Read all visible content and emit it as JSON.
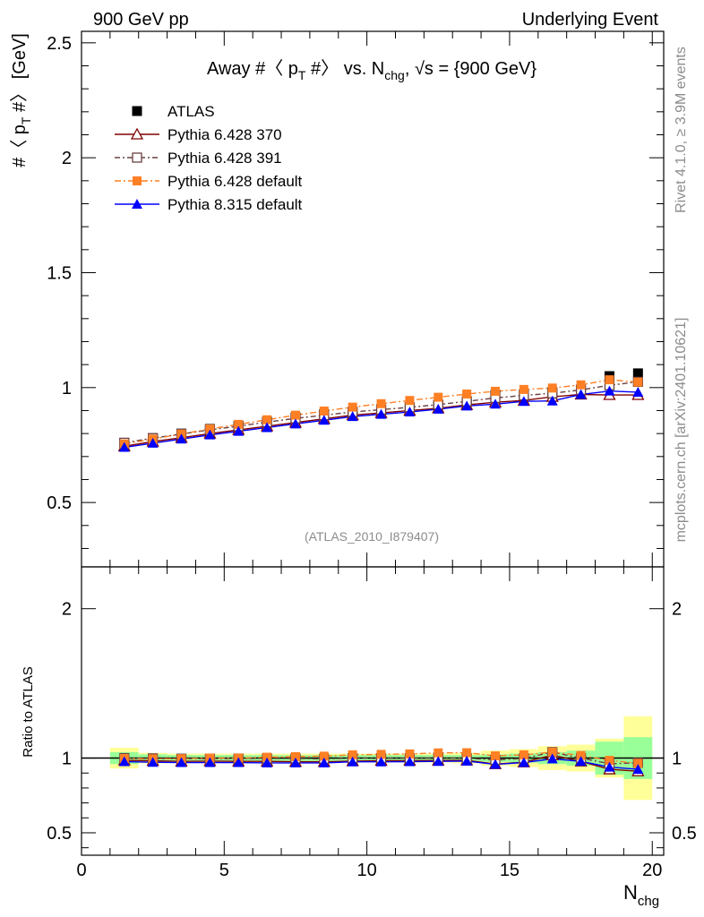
{
  "header": {
    "left": "900 GeV pp",
    "right": "Underlying Event"
  },
  "side": {
    "rivet": "Rivet 4.1.0, ≥ 3.9M events",
    "source": "mcplots.cern.ch [arXiv:2401.10621]"
  },
  "chart_data": {
    "type": "line",
    "title_parts": {
      "a": "Away #〈 p",
      "a_sub": "T",
      "b": " #〉 vs. N",
      "b_sub": "chg",
      "c": ", √s = {900 GeV}"
    },
    "ylabel_parts": {
      "a": "#〈 p",
      "a_sub": "T",
      "b": " #〉 [GeV]"
    },
    "xlabel": "N",
    "xlabel_sub": "chg",
    "ratio_ylabel": "Ratio to ATLAS",
    "watermark": "(ATLAS_2010_I879407)",
    "xlim": [
      0,
      20.4
    ],
    "ylim": [
      0.22,
      2.55
    ],
    "ratio_ylim": [
      0.35,
      2.28
    ],
    "x_ticks": [
      "0",
      "5",
      "10",
      "15",
      "20"
    ],
    "y_ticks": [
      "0.5",
      "1",
      "1.5",
      "2",
      "2.5"
    ],
    "ratio_y_ticks": [
      "0.5",
      "1",
      "2"
    ],
    "x": [
      1.5,
      2.5,
      3.5,
      4.5,
      5.5,
      6.5,
      7.5,
      8.5,
      9.5,
      10.5,
      11.5,
      12.5,
      13.5,
      14.5,
      15.5,
      16.5,
      17.5,
      18.5,
      19.5
    ],
    "series": [
      {
        "name": "ATLAS",
        "color": "#000000",
        "marker": "square-filled",
        "values": [
          0.758,
          0.78,
          0.8,
          0.82,
          0.834,
          0.852,
          0.87,
          0.885,
          0.895,
          0.905,
          0.915,
          0.925,
          0.94,
          0.968,
          0.97,
          0.98,
          0.992,
          1.05,
          1.062
        ]
      },
      {
        "name": "Pythia 6.428 370",
        "color": "#800000",
        "marker": "triangle-open",
        "values": [
          0.745,
          0.765,
          0.782,
          0.8,
          0.816,
          0.832,
          0.848,
          0.864,
          0.88,
          0.89,
          0.9,
          0.91,
          0.925,
          0.936,
          0.944,
          0.96,
          0.97,
          0.968,
          0.968
        ],
        "ratio": [
          0.985,
          0.982,
          0.978,
          0.98,
          0.978,
          0.978,
          0.976,
          0.975,
          0.98,
          0.983,
          0.983,
          0.984,
          0.985,
          0.96,
          0.972,
          1.02,
          0.978,
          0.925,
          0.912
        ]
      },
      {
        "name": "Pythia 6.428 391",
        "color": "#6b4040",
        "marker": "square-open",
        "values": [
          0.76,
          0.78,
          0.798,
          0.816,
          0.832,
          0.85,
          0.866,
          0.88,
          0.894,
          0.904,
          0.914,
          0.926,
          0.94,
          0.955,
          0.966,
          0.975,
          0.99,
          1.01,
          1.025
        ],
        "ratio": [
          1.0,
          0.998,
          0.996,
          0.996,
          0.997,
          0.998,
          0.998,
          0.995,
          1.0,
          1.0,
          1.0,
          1.003,
          1.0,
          0.988,
          0.998,
          1.04,
          1.0,
          0.962,
          0.968
        ]
      },
      {
        "name": "Pythia 6.428 default",
        "color": "#ff7f24",
        "marker": "square-filled",
        "values": [
          0.755,
          0.776,
          0.798,
          0.82,
          0.84,
          0.86,
          0.88,
          0.898,
          0.915,
          0.93,
          0.944,
          0.958,
          0.972,
          0.984,
          0.992,
          0.998,
          1.012,
          1.034,
          1.024
        ],
        "ratio": [
          0.997,
          0.995,
          0.996,
          1.0,
          1.0,
          1.006,
          1.01,
          1.013,
          1.022,
          1.025,
          1.028,
          1.035,
          1.036,
          1.015,
          1.022,
          1.04,
          1.018,
          0.985,
          0.965
        ]
      },
      {
        "name": "Pythia 8.315 default",
        "color": "#0000ff",
        "marker": "triangle-filled",
        "values": [
          0.74,
          0.758,
          0.776,
          0.794,
          0.81,
          0.826,
          0.842,
          0.858,
          0.874,
          0.884,
          0.894,
          0.906,
          0.92,
          0.928,
          0.94,
          0.942,
          0.97,
          0.985,
          0.98
        ],
        "ratio": [
          0.976,
          0.972,
          0.97,
          0.97,
          0.97,
          0.968,
          0.968,
          0.968,
          0.975,
          0.975,
          0.976,
          0.978,
          0.98,
          0.958,
          0.97,
          0.995,
          0.978,
          0.94,
          0.925
        ]
      }
    ],
    "ratio_band_inner": [
      0.04,
      0.025,
      0.02,
      0.02,
      0.02,
      0.02,
      0.02,
      0.02,
      0.02,
      0.02,
      0.02,
      0.02,
      0.02,
      0.025,
      0.03,
      0.04,
      0.05,
      0.11,
      0.14
    ],
    "ratio_band_outer": [
      0.07,
      0.035,
      0.03,
      0.03,
      0.03,
      0.03,
      0.03,
      0.03,
      0.03,
      0.03,
      0.03,
      0.03,
      0.035,
      0.05,
      0.06,
      0.08,
      0.09,
      0.13,
      0.28
    ]
  }
}
